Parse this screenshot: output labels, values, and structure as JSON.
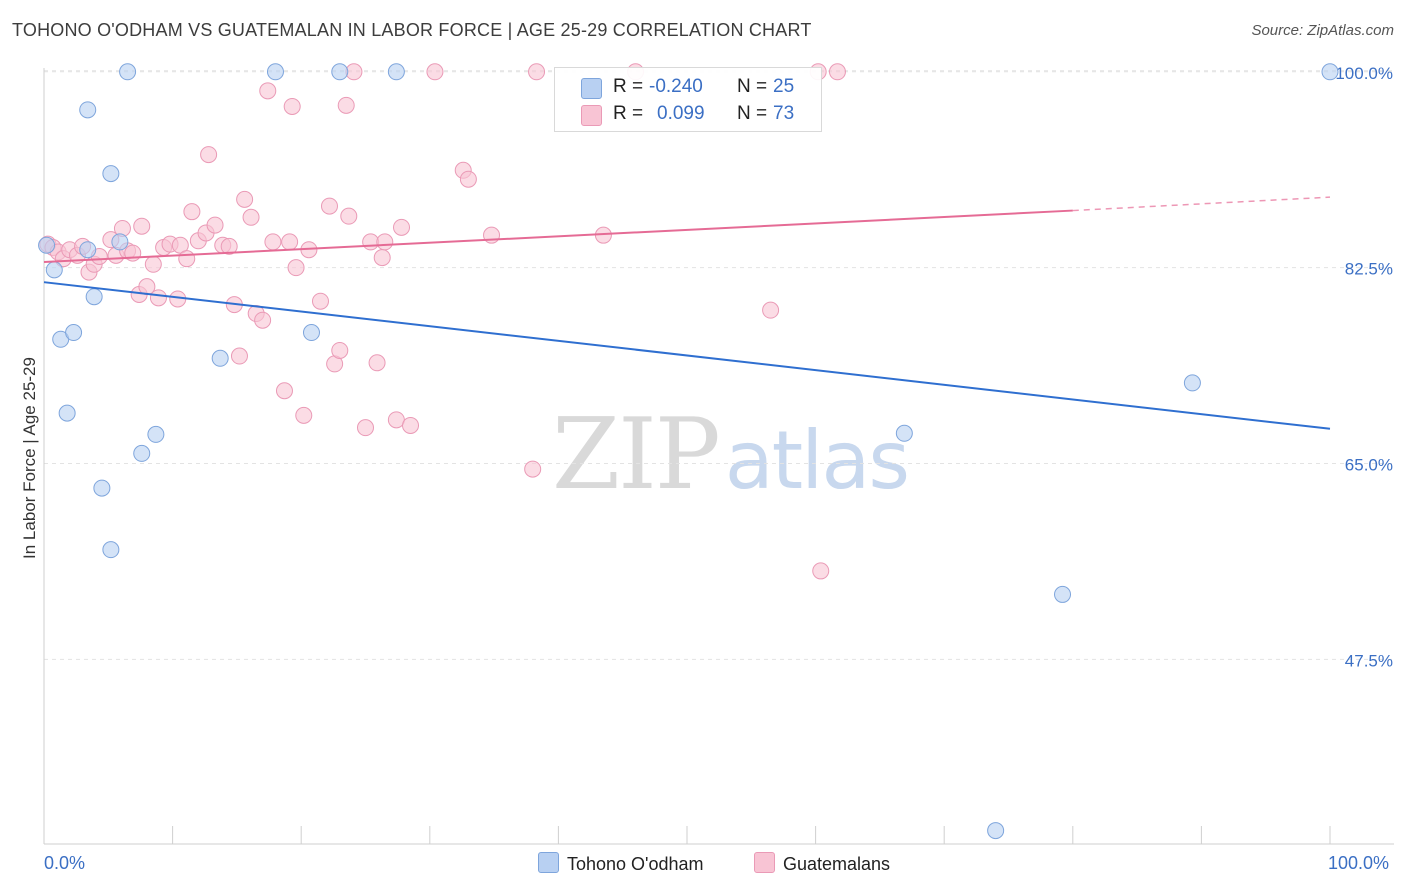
{
  "header": {
    "title": "TOHONO O'ODHAM VS GUATEMALAN IN LABOR FORCE | AGE 25-29 CORRELATION CHART",
    "source": "Source: ZipAtlas.com"
  },
  "watermark": {
    "zip": "ZIP",
    "atlas": "atlas"
  },
  "legend": {
    "rows": [
      {
        "r_label": "R =",
        "r_value": "-0.240",
        "n_label": "N =",
        "n_value": "25"
      },
      {
        "r_label": "R =",
        "r_value": "0.099",
        "n_label": "N =",
        "n_value": "73"
      }
    ]
  },
  "colors": {
    "blue_fill": "#b8d0f2",
    "blue_stroke": "#7ea5dc",
    "blue_line": "#2f6fd0",
    "pink_fill": "#f8c4d4",
    "pink_stroke": "#ea9ab6",
    "pink_line": "#e56b95",
    "grid": "#e3e3e3",
    "axis_text": "#3b6fc4"
  },
  "chart_data": {
    "type": "scatter",
    "title": "TOHONO O'ODHAM VS GUATEMALAN IN LABOR FORCE | AGE 25-29 CORRELATION CHART",
    "xlabel": "",
    "ylabel": "In Labor Force | Age 25-29",
    "xlim": [
      0,
      100
    ],
    "ylim": [
      31,
      101.5
    ],
    "x_tick_labels": [
      "0.0%",
      "100.0%"
    ],
    "y_ticks": [
      47.5,
      65.0,
      82.5,
      100.0
    ],
    "y_tick_labels": [
      "47.5%",
      "65.0%",
      "82.5%",
      "100.0%"
    ],
    "grid": true,
    "legend_position": "bottom-center",
    "series": [
      {
        "name": "Tohono O'odham",
        "r": -0.24,
        "n": 25,
        "trend": {
          "x0": 0,
          "y0": 81.2,
          "x1": 100,
          "y1": 68.1
        },
        "points": [
          [
            0.2,
            84.5
          ],
          [
            0.8,
            82.3
          ],
          [
            1.3,
            76.1
          ],
          [
            1.8,
            69.5
          ],
          [
            2.3,
            76.7
          ],
          [
            3.4,
            84.1
          ],
          [
            3.4,
            96.6
          ],
          [
            3.9,
            79.9
          ],
          [
            4.5,
            62.8
          ],
          [
            5.2,
            57.3
          ],
          [
            5.2,
            90.9
          ],
          [
            5.9,
            84.8
          ],
          [
            6.5,
            100.0
          ],
          [
            7.6,
            65.9
          ],
          [
            8.7,
            67.6
          ],
          [
            13.7,
            74.4
          ],
          [
            18.0,
            100.0
          ],
          [
            20.8,
            76.7
          ],
          [
            23.0,
            100.0
          ],
          [
            27.4,
            100.0
          ],
          [
            66.9,
            67.7
          ],
          [
            79.2,
            53.3
          ],
          [
            74.0,
            32.2
          ],
          [
            89.3,
            72.2
          ],
          [
            100.0,
            100.0
          ]
        ]
      },
      {
        "name": "Guatemalans",
        "r": 0.099,
        "n": 73,
        "trend": {
          "x0": 0,
          "y0": 83.0,
          "x1": 80,
          "y1": 87.6,
          "dashed_to_x": 100,
          "dashed_to_y": 88.8
        },
        "points": [
          [
            0.3,
            84.6
          ],
          [
            0.7,
            84.3
          ],
          [
            1.1,
            83.9
          ],
          [
            1.5,
            83.3
          ],
          [
            2.0,
            84.1
          ],
          [
            2.6,
            83.6
          ],
          [
            3.0,
            84.4
          ],
          [
            3.5,
            82.1
          ],
          [
            3.9,
            82.8
          ],
          [
            5.2,
            85.0
          ],
          [
            5.6,
            83.6
          ],
          [
            6.1,
            86.0
          ],
          [
            6.5,
            84.0
          ],
          [
            6.9,
            83.8
          ],
          [
            7.4,
            80.1
          ],
          [
            7.6,
            86.2
          ],
          [
            8.0,
            80.8
          ],
          [
            8.5,
            82.8
          ],
          [
            8.9,
            79.8
          ],
          [
            9.3,
            84.3
          ],
          [
            9.8,
            84.6
          ],
          [
            10.4,
            79.7
          ],
          [
            10.6,
            84.5
          ],
          [
            11.1,
            83.3
          ],
          [
            11.5,
            87.5
          ],
          [
            12.0,
            84.9
          ],
          [
            12.6,
            85.6
          ],
          [
            12.8,
            92.6
          ],
          [
            13.3,
            86.3
          ],
          [
            13.9,
            84.5
          ],
          [
            14.4,
            84.4
          ],
          [
            14.8,
            79.2
          ],
          [
            15.2,
            74.6
          ],
          [
            15.6,
            88.6
          ],
          [
            16.1,
            87.0
          ],
          [
            16.5,
            78.4
          ],
          [
            17.0,
            77.8
          ],
          [
            17.4,
            98.3
          ],
          [
            17.8,
            84.8
          ],
          [
            18.7,
            71.5
          ],
          [
            19.1,
            84.8
          ],
          [
            19.3,
            96.9
          ],
          [
            19.6,
            82.5
          ],
          [
            20.2,
            69.3
          ],
          [
            21.5,
            79.5
          ],
          [
            22.2,
            88.0
          ],
          [
            22.6,
            73.9
          ],
          [
            23.0,
            75.1
          ],
          [
            23.5,
            97.0
          ],
          [
            23.7,
            87.1
          ],
          [
            24.1,
            100.0
          ],
          [
            25.0,
            68.2
          ],
          [
            25.4,
            84.8
          ],
          [
            25.9,
            74.0
          ],
          [
            26.3,
            83.4
          ],
          [
            26.5,
            84.8
          ],
          [
            27.8,
            86.1
          ],
          [
            27.4,
            68.9
          ],
          [
            28.5,
            68.4
          ],
          [
            30.4,
            100.0
          ],
          [
            32.6,
            91.2
          ],
          [
            33.0,
            90.4
          ],
          [
            34.8,
            85.4
          ],
          [
            38.0,
            64.5
          ],
          [
            38.3,
            100.0
          ],
          [
            43.5,
            85.4
          ],
          [
            46.0,
            100.0
          ],
          [
            56.5,
            78.7
          ],
          [
            60.2,
            100.0
          ],
          [
            60.4,
            55.4
          ],
          [
            61.7,
            100.0
          ],
          [
            20.6,
            84.1
          ],
          [
            4.3,
            83.5
          ]
        ]
      }
    ]
  }
}
